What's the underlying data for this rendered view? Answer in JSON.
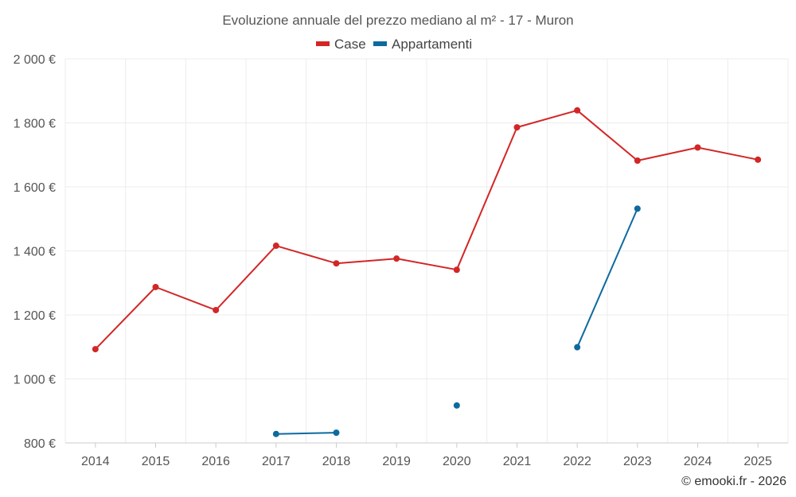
{
  "chart_data": {
    "type": "line",
    "title": "Evoluzione annuale del prezzo mediano al m² - 17 - Muron",
    "categories": [
      "2014",
      "2015",
      "2016",
      "2017",
      "2018",
      "2019",
      "2020",
      "2021",
      "2022",
      "2023",
      "2024",
      "2025"
    ],
    "ylim": [
      800,
      2000
    ],
    "yticks": [
      800,
      1000,
      1200,
      1400,
      1600,
      1800,
      2000
    ],
    "ytick_labels": [
      "800 €",
      "1 000 €",
      "1 200 €",
      "1 400 €",
      "1 600 €",
      "1 800 €",
      "2 000 €"
    ],
    "grid": true,
    "legend_position": "top-center",
    "series": [
      {
        "name": "Case",
        "color": "#d32626",
        "values": [
          1093,
          1287,
          1215,
          1416,
          1361,
          1376,
          1341,
          1786,
          1839,
          1682,
          1723,
          1685
        ]
      },
      {
        "name": "Appartamenti",
        "color": "#0d6a9e",
        "values": [
          null,
          null,
          null,
          828,
          832,
          null,
          917,
          null,
          1099,
          1532,
          null,
          null
        ]
      }
    ]
  },
  "credit": "© emooki.fr - 2026"
}
